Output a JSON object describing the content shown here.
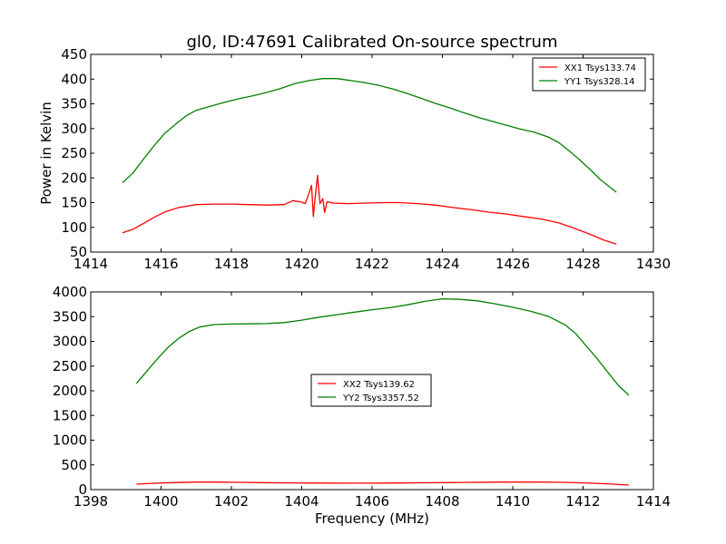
{
  "chart_data": [
    {
      "type": "line",
      "title": "gl0, ID:47691 Calibrated On-source spectrum",
      "xlabel": "",
      "ylabel": "Power in Kelvin",
      "xlim": [
        1414,
        1430
      ],
      "ylim": [
        50,
        450
      ],
      "xticks": [
        "1414",
        "1416",
        "1418",
        "1420",
        "1422",
        "1424",
        "1426",
        "1428",
        "1430"
      ],
      "yticks": [
        "50",
        "100",
        "150",
        "200",
        "250",
        "300",
        "350",
        "400",
        "450"
      ],
      "grid": false,
      "legend_placement": "upper right",
      "series": [
        {
          "name": "XX1 Tsys133.74",
          "color": "#ff0000",
          "points": [
            [
              1414.9,
              89
            ],
            [
              1415.2,
              96
            ],
            [
              1415.5,
              108
            ],
            [
              1415.8,
              120
            ],
            [
              1416.1,
              131
            ],
            [
              1416.5,
              140
            ],
            [
              1417.0,
              146
            ],
            [
              1417.5,
              147
            ],
            [
              1418.0,
              147
            ],
            [
              1418.5,
              146
            ],
            [
              1419.0,
              145
            ],
            [
              1419.5,
              146
            ],
            [
              1419.75,
              154
            ],
            [
              1420.0,
              151
            ],
            [
              1420.1,
              148
            ],
            [
              1420.2,
              168
            ],
            [
              1420.28,
              185
            ],
            [
              1420.33,
              122
            ],
            [
              1420.38,
              160
            ],
            [
              1420.45,
              205
            ],
            [
              1420.52,
              148
            ],
            [
              1420.6,
              158
            ],
            [
              1420.65,
              130
            ],
            [
              1420.72,
              152
            ],
            [
              1420.9,
              149
            ],
            [
              1421.3,
              148
            ],
            [
              1421.8,
              149
            ],
            [
              1422.3,
              150
            ],
            [
              1422.8,
              150
            ],
            [
              1423.3,
              148
            ],
            [
              1423.8,
              145
            ],
            [
              1424.3,
              140
            ],
            [
              1424.8,
              136
            ],
            [
              1425.3,
              131
            ],
            [
              1425.8,
              127
            ],
            [
              1426.3,
              122
            ],
            [
              1426.8,
              117
            ],
            [
              1427.3,
              109
            ],
            [
              1427.8,
              97
            ],
            [
              1428.3,
              83
            ],
            [
              1428.6,
              74
            ],
            [
              1428.95,
              66
            ]
          ]
        },
        {
          "name": "YY1 Tsys328.14",
          "color": "#008000",
          "points": [
            [
              1414.9,
              190
            ],
            [
              1415.2,
              210
            ],
            [
              1415.5,
              238
            ],
            [
              1415.8,
              265
            ],
            [
              1416.1,
              290
            ],
            [
              1416.4,
              308
            ],
            [
              1416.7,
              325
            ],
            [
              1417.0,
              337
            ],
            [
              1417.4,
              345
            ],
            [
              1417.8,
              353
            ],
            [
              1418.2,
              360
            ],
            [
              1418.6,
              366
            ],
            [
              1419.0,
              373
            ],
            [
              1419.4,
              381
            ],
            [
              1419.8,
              391
            ],
            [
              1420.2,
              397
            ],
            [
              1420.6,
              401
            ],
            [
              1421.0,
              401
            ],
            [
              1421.4,
              397
            ],
            [
              1421.8,
              393
            ],
            [
              1422.2,
              387
            ],
            [
              1422.6,
              380
            ],
            [
              1423.0,
              371
            ],
            [
              1423.4,
              361
            ],
            [
              1423.8,
              351
            ],
            [
              1424.2,
              342
            ],
            [
              1424.6,
              332
            ],
            [
              1425.0,
              323
            ],
            [
              1425.4,
              315
            ],
            [
              1425.8,
              307
            ],
            [
              1426.2,
              299
            ],
            [
              1426.6,
              293
            ],
            [
              1427.0,
              283
            ],
            [
              1427.3,
              272
            ],
            [
              1427.6,
              255
            ],
            [
              1427.9,
              237
            ],
            [
              1428.2,
              217
            ],
            [
              1428.5,
              196
            ],
            [
              1428.95,
              171
            ]
          ]
        }
      ]
    },
    {
      "type": "line",
      "title": "",
      "xlabel": "Frequency (MHz)",
      "ylabel": "",
      "xlim": [
        1398,
        1414
      ],
      "ylim": [
        0,
        4000
      ],
      "xticks": [
        "1398",
        "1400",
        "1402",
        "1404",
        "1406",
        "1408",
        "1410",
        "1412",
        "1414"
      ],
      "yticks": [
        "0",
        "500",
        "1000",
        "1500",
        "2000",
        "2500",
        "3000",
        "3500",
        "4000"
      ],
      "grid": false,
      "legend_placement": "center",
      "series": [
        {
          "name": "XX2 Tsys139.62",
          "color": "#ff0000",
          "points": [
            [
              1399.3,
              110
            ],
            [
              1399.8,
              128
            ],
            [
              1400.3,
              142
            ],
            [
              1400.8,
              150
            ],
            [
              1401.3,
              152
            ],
            [
              1401.8,
              150
            ],
            [
              1402.3,
              146
            ],
            [
              1402.8,
              142
            ],
            [
              1403.3,
              138
            ],
            [
              1403.8,
              135
            ],
            [
              1404.3,
              133
            ],
            [
              1404.8,
              132
            ],
            [
              1405.3,
              131
            ],
            [
              1405.8,
              131
            ],
            [
              1406.3,
              132
            ],
            [
              1406.8,
              134
            ],
            [
              1407.3,
              137
            ],
            [
              1407.8,
              140
            ],
            [
              1408.3,
              143
            ],
            [
              1408.8,
              147
            ],
            [
              1409.3,
              150
            ],
            [
              1409.8,
              152
            ],
            [
              1410.3,
              153
            ],
            [
              1410.8,
              152
            ],
            [
              1411.3,
              148
            ],
            [
              1411.8,
              140
            ],
            [
              1412.3,
              128
            ],
            [
              1412.8,
              112
            ],
            [
              1413.3,
              92
            ]
          ]
        },
        {
          "name": "YY2 Tsys3357.52",
          "color": "#008000",
          "points": [
            [
              1399.3,
              2150
            ],
            [
              1399.6,
              2400
            ],
            [
              1399.9,
              2650
            ],
            [
              1400.2,
              2880
            ],
            [
              1400.5,
              3060
            ],
            [
              1400.8,
              3200
            ],
            [
              1401.1,
              3290
            ],
            [
              1401.5,
              3340
            ],
            [
              1402.0,
              3350
            ],
            [
              1402.5,
              3355
            ],
            [
              1403.0,
              3360
            ],
            [
              1403.5,
              3380
            ],
            [
              1404.0,
              3430
            ],
            [
              1404.5,
              3490
            ],
            [
              1405.0,
              3540
            ],
            [
              1405.5,
              3590
            ],
            [
              1406.0,
              3640
            ],
            [
              1406.5,
              3680
            ],
            [
              1407.0,
              3740
            ],
            [
              1407.5,
              3810
            ],
            [
              1408.0,
              3860
            ],
            [
              1408.5,
              3850
            ],
            [
              1409.0,
              3820
            ],
            [
              1409.5,
              3760
            ],
            [
              1410.0,
              3690
            ],
            [
              1410.5,
              3610
            ],
            [
              1411.0,
              3510
            ],
            [
              1411.5,
              3330
            ],
            [
              1411.8,
              3150
            ],
            [
              1412.1,
              2900
            ],
            [
              1412.4,
              2650
            ],
            [
              1412.7,
              2380
            ],
            [
              1413.0,
              2110
            ],
            [
              1413.3,
              1910
            ]
          ]
        }
      ]
    }
  ]
}
